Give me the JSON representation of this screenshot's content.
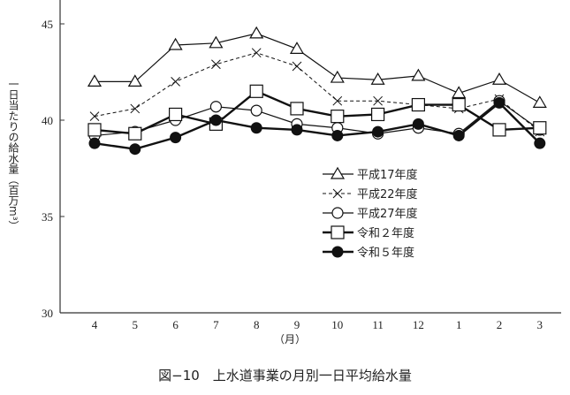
{
  "chart_data": {
    "type": "line",
    "title": "図−10　上水道事業の月別一日平均給水量",
    "xlabel": "（月）",
    "ylabel": "一日当たりの給水量（百万m³）",
    "ylim": [
      30,
      46.2
    ],
    "yticks": [
      "30",
      "35",
      "40",
      "45"
    ],
    "categories": [
      "4",
      "5",
      "6",
      "7",
      "8",
      "9",
      "10",
      "11",
      "12",
      "1",
      "2",
      "3"
    ],
    "legend_position": "center-right",
    "series": [
      {
        "name": "平成17年度",
        "marker": "triangle",
        "style": "solid",
        "values": [
          42.0,
          42.0,
          43.9,
          44.0,
          44.5,
          43.7,
          42.2,
          42.1,
          42.3,
          41.4,
          42.1,
          40.9
        ]
      },
      {
        "name": "平成22年度",
        "marker": "x",
        "style": "dashed",
        "values": [
          40.2,
          40.6,
          42.0,
          42.9,
          43.5,
          42.8,
          41.0,
          41.0,
          40.8,
          40.6,
          41.1,
          39.4
        ]
      },
      {
        "name": "平成27年度",
        "marker": "circle",
        "style": "solid",
        "values": [
          39.2,
          39.4,
          40.0,
          40.7,
          40.5,
          39.8,
          39.6,
          39.3,
          39.6,
          39.3,
          41.0,
          39.5
        ]
      },
      {
        "name": "令和２年度",
        "marker": "square",
        "style": "bold",
        "values": [
          39.5,
          39.3,
          40.3,
          39.8,
          41.5,
          40.6,
          40.2,
          40.3,
          40.8,
          40.8,
          39.5,
          39.6
        ]
      },
      {
        "name": "令和５年度",
        "marker": "dot",
        "style": "bold",
        "values": [
          38.8,
          38.5,
          39.1,
          40.0,
          39.6,
          39.5,
          39.2,
          39.4,
          39.8,
          39.2,
          40.9,
          38.8
        ]
      }
    ]
  }
}
